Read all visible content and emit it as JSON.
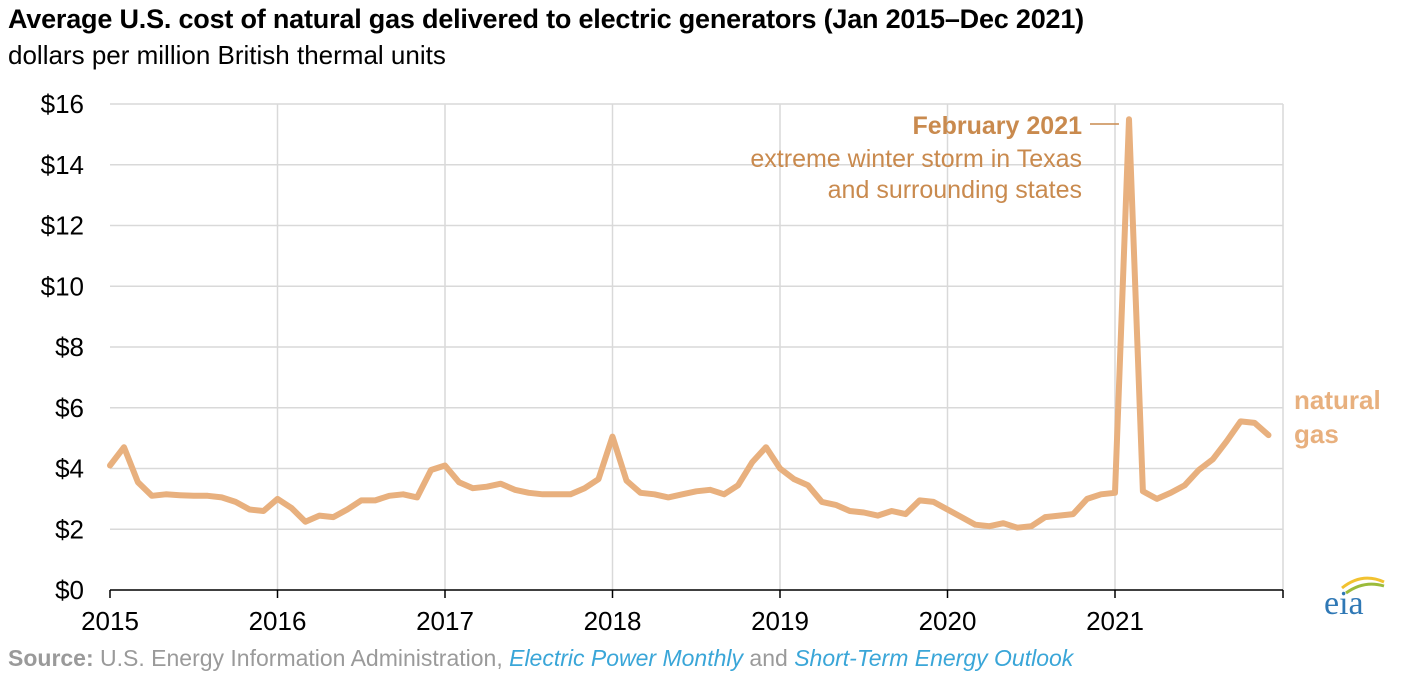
{
  "header": {
    "title": "Average U.S. cost of natural gas delivered to electric generators (Jan 2015–Dec 2021)",
    "subtitle": "dollars per million British thermal units"
  },
  "footer": {
    "source_label": "Source:",
    "source_text": " U.S. Energy Information Administration, ",
    "link1": "Electric Power Monthly",
    "and_text": " and ",
    "link2": "Short-Term Energy Outlook"
  },
  "logo": {
    "text": "eia"
  },
  "colors": {
    "series": "#e8b07e",
    "annotation": "#c98a4e",
    "grid": "#d9d9d9",
    "axis": "#000000",
    "logo_blue": "#2f78b5",
    "logo_green": "#9bbb3b",
    "logo_yellow": "#f2c230"
  },
  "chart_data": {
    "type": "line",
    "title": "Average U.S. cost of natural gas delivered to electric generators (Jan 2015–Dec 2021)",
    "ylabel": "dollars per million British thermal units",
    "ylim": [
      0,
      16
    ],
    "y_ticks": [
      0,
      2,
      4,
      6,
      8,
      10,
      12,
      14,
      16
    ],
    "y_tick_labels": [
      "$0",
      "$2",
      "$4",
      "$6",
      "$8",
      "$10",
      "$12",
      "$14",
      "$16"
    ],
    "x_tick_labels": [
      "2015",
      "2016",
      "2017",
      "2018",
      "2019",
      "2020",
      "2021"
    ],
    "grid": true,
    "series": [
      {
        "name": "natural gas",
        "label_lines": [
          "natural",
          "gas"
        ],
        "start": "2015-01",
        "values": [
          4.1,
          4.7,
          3.55,
          3.1,
          3.15,
          3.12,
          3.1,
          3.1,
          3.05,
          2.9,
          2.65,
          2.6,
          3.0,
          2.7,
          2.25,
          2.45,
          2.4,
          2.65,
          2.95,
          2.95,
          3.1,
          3.15,
          3.05,
          3.95,
          4.1,
          3.55,
          3.35,
          3.4,
          3.5,
          3.3,
          3.2,
          3.15,
          3.15,
          3.15,
          3.35,
          3.65,
          5.05,
          3.6,
          3.2,
          3.15,
          3.05,
          3.15,
          3.25,
          3.3,
          3.15,
          3.45,
          4.2,
          4.7,
          4.0,
          3.65,
          3.45,
          2.9,
          2.8,
          2.6,
          2.55,
          2.45,
          2.6,
          2.5,
          2.95,
          2.9,
          2.65,
          2.4,
          2.15,
          2.1,
          2.2,
          2.05,
          2.1,
          2.4,
          2.45,
          2.5,
          3.0,
          3.15,
          3.2,
          15.5,
          3.25,
          3.0,
          3.2,
          3.45,
          3.95,
          4.3,
          4.9,
          5.55,
          5.5,
          5.1
        ]
      }
    ],
    "annotations": [
      {
        "heading": "February 2021",
        "lines": [
          "extreme winter storm in Texas",
          "and surrounding states"
        ],
        "point": {
          "x": "2021-02",
          "y": 15.5
        }
      }
    ]
  }
}
